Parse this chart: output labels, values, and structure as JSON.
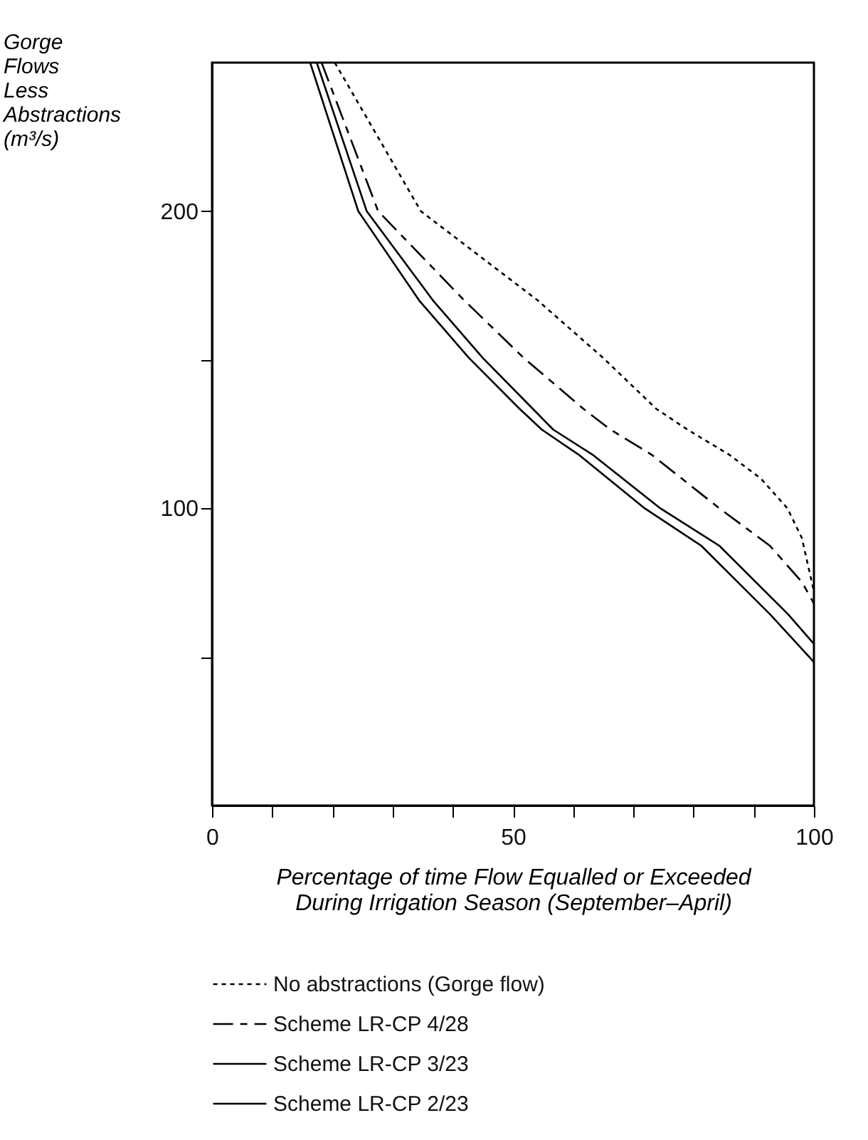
{
  "chart_data": {
    "type": "line",
    "xlabel": "Percentage of time Flow Equalled or Exceeded During Irrigation Season (September–April)",
    "ylabel": "Gorge Flows Less Abstractions (m³/s)",
    "xlim": [
      0,
      100
    ],
    "ylim": [
      0,
      250
    ],
    "xticks": [
      0,
      {
        "value": 10,
        "label": null
      },
      {
        "value": 20,
        "label": null
      },
      {
        "value": 30,
        "label": null
      },
      {
        "value": 40,
        "label": null
      },
      50,
      {
        "value": 60,
        "label": null
      },
      {
        "value": 70,
        "label": null
      },
      {
        "value": 80,
        "label": null
      },
      {
        "value": 90,
        "label": null
      },
      100
    ],
    "yticks": [
      {
        "value": 50,
        "label": null
      },
      100,
      {
        "value": 150,
        "label": null
      },
      200
    ],
    "grid": false,
    "legend": "bottom",
    "series": [
      {
        "name": "No abstractions (Gorge flow)",
        "color": "#000000",
        "line_style": "dotted",
        "x": [
          20.4,
          34.7,
          54.1,
          65,
          73.8,
          79,
          85.9,
          91.2,
          95.6,
          98,
          100
        ],
        "values": [
          250,
          200,
          170,
          150.6,
          133.5,
          126.5,
          118.1,
          110,
          100,
          90,
          72
        ]
      },
      {
        "name": "Scheme LR-CP 4/28",
        "color": "#000000",
        "line_style": "dashed",
        "x": [
          18.2,
          27.6,
          41.9,
          51.8,
          61.7,
          66.2,
          73,
          84.3,
          92.7,
          98,
          100
        ],
        "values": [
          250,
          200,
          170,
          150.6,
          133.5,
          126.5,
          118.1,
          100,
          87.4,
          75.2,
          68
        ]
      },
      {
        "name": "Scheme LR-CP 3/23",
        "color": "#000000",
        "line_style": "solid",
        "x": [
          17.4,
          25.7,
          36.7,
          45,
          53.3,
          56.7,
          63.2,
          74.5,
          84.3,
          95.7,
          100
        ],
        "values": [
          250,
          200,
          170,
          150.6,
          133.5,
          126.5,
          118.1,
          100,
          87.4,
          64.4,
          54.4
        ]
      },
      {
        "name": "Scheme LR-CP 2/23",
        "color": "#000000",
        "line_style": "solid",
        "x": [
          16.3,
          24.3,
          34.4,
          42.7,
          51.1,
          54.8,
          60.9,
          71.9,
          81.3,
          92.7,
          100
        ],
        "values": [
          250,
          200,
          170,
          150.6,
          133.5,
          126.5,
          118.1,
          100,
          87.4,
          64.4,
          48.3
        ]
      }
    ]
  }
}
